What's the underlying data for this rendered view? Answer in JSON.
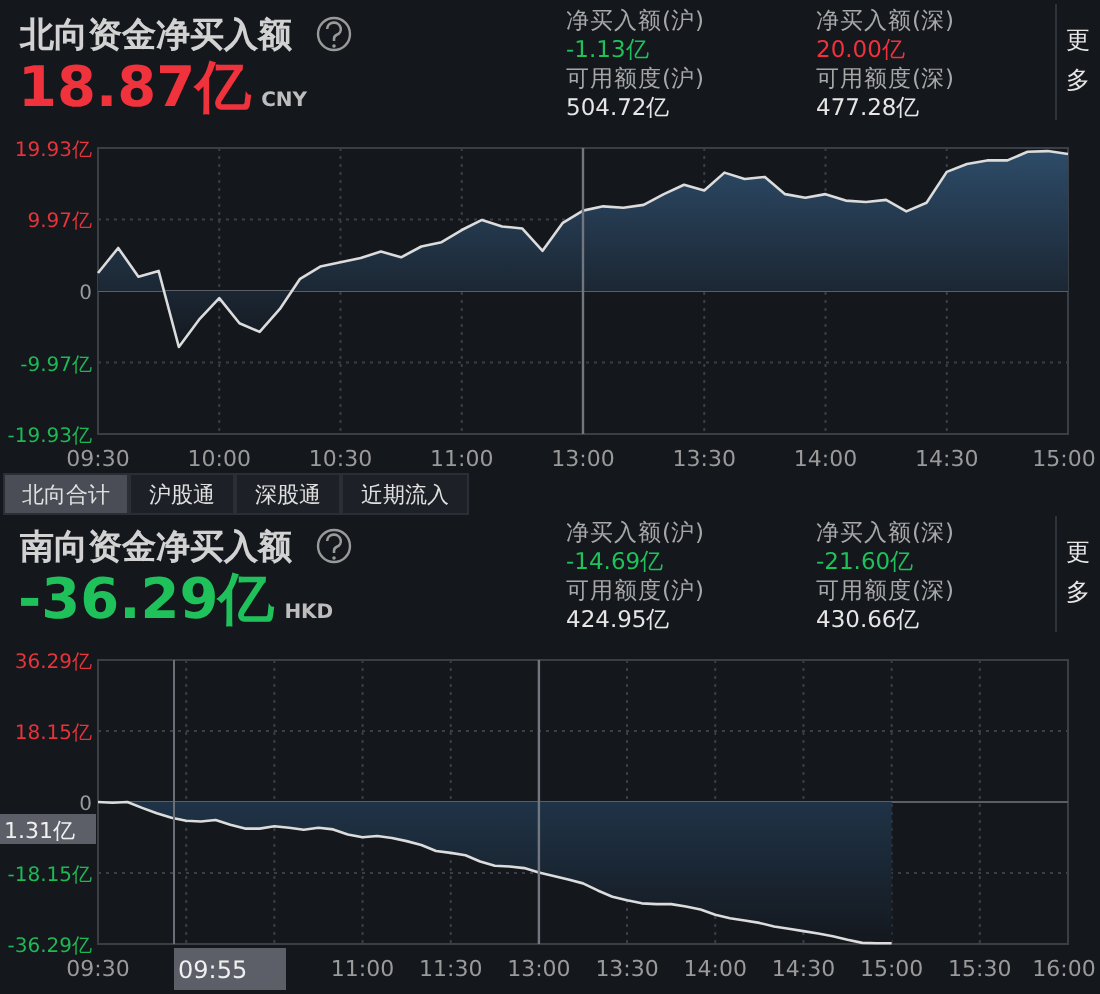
{
  "chart_data": [
    {
      "type": "area",
      "title": "北向资金净买入额",
      "subtitle": "18.87亿",
      "color": "#2d4b68",
      "annotations": [
        "净买入额(沪)",
        "-1.13亿",
        "净买入额(深)",
        "20.00亿",
        "可用额度(沪)",
        "504.72亿",
        "可用额度(深)",
        "477.28亿",
        "更多",
        "CNY",
        "北向合计",
        "沪股通",
        "深股通",
        "近期流入"
      ],
      "categories": [
        "09:30",
        null,
        null,
        null,
        null,
        null,
        "10:00",
        null,
        null,
        null,
        null,
        null,
        "10:30",
        null,
        null,
        null,
        null,
        null,
        "11:00",
        null,
        null,
        null,
        null,
        null,
        "13:00",
        null,
        null,
        null,
        null,
        null,
        "13:30",
        null,
        null,
        null,
        null,
        null,
        "14:00",
        null,
        null,
        null,
        null,
        null,
        "14:30",
        null,
        null,
        null,
        null,
        null,
        "15:00"
      ],
      "values": [
        2.5,
        6.0,
        2.0,
        2.8,
        -7.8,
        -4.0,
        -1.0,
        -4.5,
        -5.7,
        -2.5,
        1.7,
        3.4,
        4.0,
        4.6,
        5.5,
        4.7,
        6.2,
        6.8,
        8.5,
        9.9,
        9.0,
        8.7,
        5.6,
        9.5,
        11.2,
        11.8,
        11.6,
        12.0,
        13.5,
        14.8,
        14.0,
        16.5,
        15.6,
        15.9,
        13.5,
        13.0,
        13.5,
        12.6,
        12.4,
        12.7,
        11.1,
        12.3,
        16.6,
        17.7,
        18.2,
        18.2,
        19.4,
        19.5,
        19.1
      ],
      "ylim": [
        -19.93,
        19.93
      ],
      "yticks": [
        {
          "value": 19.93,
          "label": "19.93亿"
        },
        {
          "value": 9.97,
          "label": "9.97亿"
        },
        0,
        {
          "value": -9.97,
          "label": "-9.97亿"
        },
        {
          "value": -19.93,
          "label": "-19.93亿"
        }
      ],
      "grid": true,
      "ref_lines": [
        {
          "axis": "x",
          "value": "13:00"
        }
      ]
    },
    {
      "type": "area",
      "title": "南向资金净买入额",
      "subtitle": "-36.29亿",
      "color": "#1f3347",
      "annotations": [
        "净买入额(沪)",
        "-14.69亿",
        "净买入额(深)",
        "-21.60亿",
        "可用额度(沪)",
        "424.95亿",
        "可用额度(深)",
        "430.66亿",
        "更多",
        "HKD",
        "1.31亿",
        "09:55"
      ],
      "categories": [
        "09:30",
        null,
        null,
        null,
        null,
        null,
        null,
        null,
        null,
        null,
        null,
        null,
        null,
        null,
        null,
        null,
        null,
        null,
        "11:00",
        null,
        null,
        null,
        null,
        null,
        "11:30",
        null,
        null,
        null,
        null,
        null,
        "13:00",
        null,
        null,
        null,
        null,
        null,
        "13:30",
        null,
        null,
        null,
        null,
        null,
        "14:00",
        null,
        null,
        null,
        null,
        null,
        "14:30",
        null,
        null,
        null,
        null,
        null,
        "15:00",
        null,
        null,
        null,
        null,
        null,
        "15:30",
        null,
        null,
        null,
        null,
        null,
        "16:00"
      ],
      "values": [
        0,
        -0.2,
        0,
        -1.5,
        -2.9,
        -4.0,
        -4.8,
        -5.0,
        -4.6,
        -5.8,
        -6.8,
        -6.8,
        -6.2,
        -6.6,
        -7.1,
        -6.6,
        -7.0,
        -8.3,
        -9.0,
        -8.7,
        -9.2,
        -10.0,
        -11.0,
        -12.5,
        -13.0,
        -13.6,
        -15.2,
        -16.3,
        -16.5,
        -16.9,
        -18.0,
        -18.9,
        -19.8,
        -20.8,
        -22.6,
        -24.2,
        -25.1,
        -25.9,
        -26.1,
        -26.1,
        -26.7,
        -27.5,
        -28.8,
        -29.7,
        -30.3,
        -30.9,
        -31.8,
        -32.4,
        -33.0,
        -33.6,
        -34.3,
        -35.2,
        -36.0,
        -36.1,
        -36.1,
        null,
        null,
        null,
        null,
        null,
        null,
        null,
        null,
        null,
        null,
        null,
        null
      ],
      "ylim": [
        -36.29,
        36.29
      ],
      "yticks": [
        {
          "value": 36.29,
          "label": "36.29亿"
        },
        {
          "value": 18.15,
          "label": "18.15亿"
        },
        0,
        {
          "value": -18.15,
          "label": "-18.15亿"
        },
        {
          "value": -36.29,
          "label": "-36.29亿"
        }
      ],
      "grid": true,
      "ref_lines": [
        {
          "axis": "x",
          "value": "13:00"
        }
      ]
    }
  ]
}
